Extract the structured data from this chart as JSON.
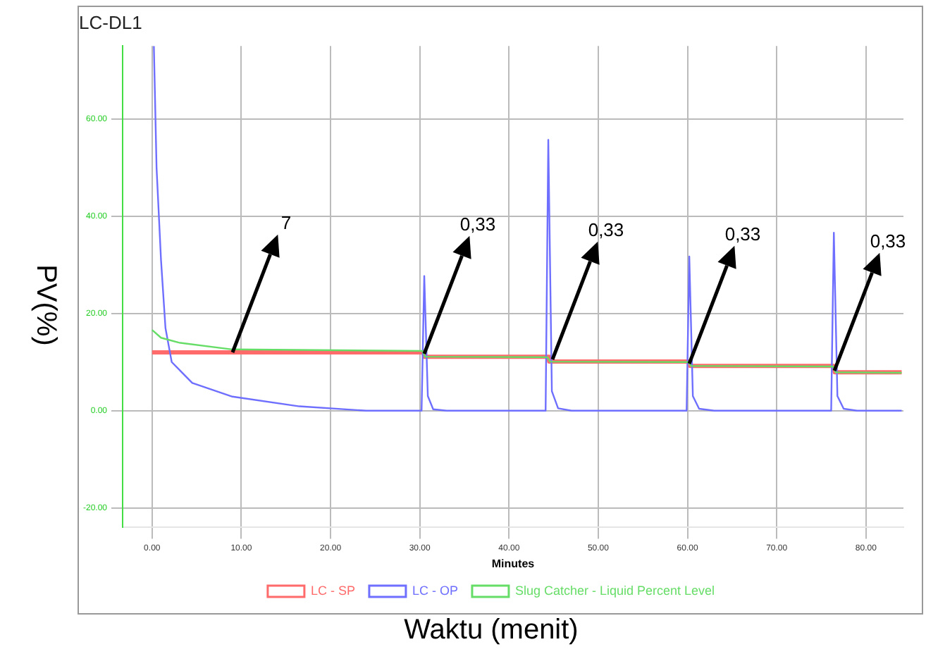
{
  "chart_data": {
    "type": "line",
    "title": "LC-DL1",
    "xlabel": "Minutes",
    "ylabel": "PV(%)",
    "annotations": [
      "Waktu (menit)",
      {
        "text": "7",
        "x": 9,
        "y": 12
      },
      {
        "text": "0,33",
        "x": 30.5,
        "y": 11.6
      },
      {
        "text": "0,33",
        "x": 44.8,
        "y": 10.6
      },
      {
        "text": "0,33",
        "x": 60.2,
        "y": 9.6
      },
      {
        "text": "0,33",
        "x": 76.4,
        "y": 8.3
      }
    ],
    "xlim": [
      -3.3,
      84.2
    ],
    "xticks": [
      {
        "value": 0,
        "label": "0.00"
      },
      {
        "value": 10,
        "label": "10.00"
      },
      {
        "value": 20,
        "label": "20.00"
      },
      {
        "value": 30,
        "label": "30.00"
      },
      {
        "value": 40,
        "label": "40.00"
      },
      {
        "value": 50,
        "label": "50.00"
      },
      {
        "value": 60,
        "label": "60.00"
      },
      {
        "value": 70,
        "label": "70.00"
      },
      {
        "value": 80,
        "label": "80.00"
      }
    ],
    "ylim": [
      -24,
      75
    ],
    "yticks": [
      {
        "value": -20,
        "label": "-20.00"
      },
      {
        "value": 0,
        "label": "0.00"
      },
      {
        "value": 20,
        "label": "20.00"
      },
      {
        "value": 40,
        "label": "40.00"
      },
      {
        "value": 60,
        "label": "60.00"
      }
    ],
    "grid": true,
    "legend": "bottom",
    "marker": "none",
    "line_style": "solid",
    "series": [
      {
        "name": "LC - SP",
        "color": "#ff6b6b",
        "x": [
          0,
          30.4,
          30.5,
          44.4,
          44.5,
          60.2,
          60.3,
          76.4,
          76.5,
          84
        ],
        "values": [
          12,
          12,
          11.1,
          11.1,
          10.1,
          10.1,
          9.2,
          9.2,
          7.9,
          7.9
        ]
      },
      {
        "name": "LC - OP",
        "color": "#6f6fff",
        "x": [
          0.2,
          0.5,
          1,
          1.5,
          2.2,
          4.5,
          9,
          16.5,
          24,
          30.2,
          30.5,
          30.9,
          31.5,
          33,
          44.1,
          44.4,
          44.8,
          45.5,
          47,
          59.9,
          60.2,
          60.6,
          61.3,
          63,
          76.1,
          76.4,
          76.8,
          77.5,
          79,
          84
        ],
        "values": [
          75,
          50,
          31,
          17,
          10,
          5.7,
          2.9,
          0.9,
          0,
          0,
          27.7,
          3,
          0.3,
          0,
          0,
          55.7,
          4,
          0.5,
          0,
          0,
          31.7,
          3,
          0.4,
          0,
          0,
          36.6,
          3,
          0.4,
          0,
          0
        ]
      },
      {
        "name": "Slug Catcher - Liquid Percent Level",
        "color": "#66dd66",
        "x": [
          0,
          1,
          3,
          9,
          30.3,
          30.6,
          44.3,
          44.6,
          60.1,
          60.4,
          76.3,
          76.6,
          84
        ],
        "values": [
          16.6,
          15,
          14,
          12.6,
          12.3,
          11.1,
          11,
          10.1,
          10,
          9.2,
          9.1,
          7.9,
          7.8
        ]
      }
    ]
  }
}
